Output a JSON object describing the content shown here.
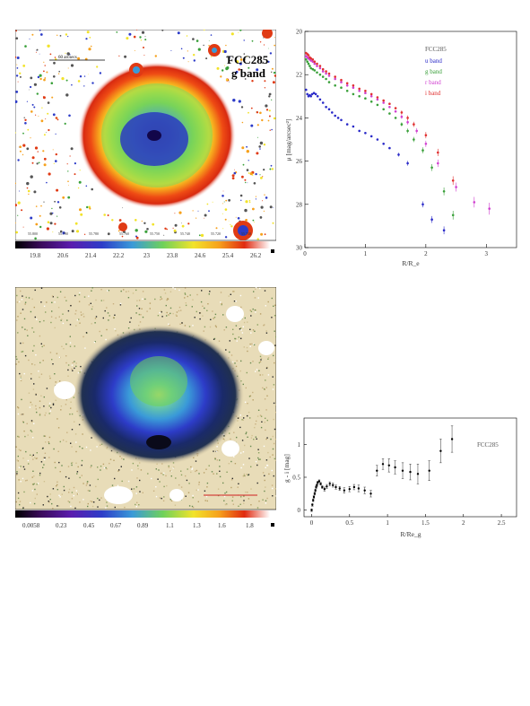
{
  "panel_a": {
    "label_line1": "FCC285",
    "label_line2": "g band",
    "scale_label": "60 arcsecs",
    "colorbar_ticks": [
      "19.8",
      "20.6",
      "21.4",
      "22.2",
      "23",
      "23.8",
      "24.6",
      "25.4",
      "26.2"
    ],
    "coord_ticks": [
      "55.800",
      "55.790",
      "55.780",
      "55.760",
      "55.750",
      "55.740",
      "55.720",
      "55.710"
    ]
  },
  "panel_c": {
    "colorbar_ticks": [
      "0.0058",
      "0.23",
      "0.45",
      "0.67",
      "0.89",
      "1.1",
      "1.3",
      "1.6",
      "1.8"
    ]
  },
  "chart_data": [
    {
      "type": "scatter",
      "title": "",
      "legend_title": "FCC285",
      "legend_position": "top-right",
      "xlabel": "R/R_e",
      "ylabel": "μ [mag/arcsec²]",
      "xlim": [
        0,
        3.5
      ],
      "ylim": [
        30,
        20
      ],
      "y_inverted": true,
      "xticks": [
        "0",
        "1",
        "2",
        "3"
      ],
      "yticks": [
        "20",
        "22",
        "24",
        "26",
        "28",
        "30"
      ],
      "series": [
        {
          "name": "u band",
          "color": "#2a2ac8",
          "x": [
            0.02,
            0.04,
            0.06,
            0.08,
            0.1,
            0.12,
            0.15,
            0.18,
            0.21,
            0.25,
            0.3,
            0.35,
            0.4,
            0.45,
            0.5,
            0.55,
            0.6,
            0.7,
            0.8,
            0.9,
            1.0,
            1.1,
            1.2,
            1.3,
            1.4,
            1.55,
            1.7,
            1.95,
            2.1,
            2.3
          ],
          "y": [
            22.7,
            22.9,
            23.0,
            22.95,
            23.0,
            22.9,
            22.85,
            22.9,
            23.0,
            23.15,
            23.3,
            23.5,
            23.6,
            23.75,
            23.9,
            24.0,
            24.1,
            24.3,
            24.4,
            24.6,
            24.7,
            24.85,
            25.0,
            25.2,
            25.4,
            25.7,
            26.1,
            28.0,
            28.7,
            29.2
          ]
        },
        {
          "name": "g band",
          "color": "#3aa03a",
          "x": [
            0.02,
            0.04,
            0.06,
            0.08,
            0.1,
            0.13,
            0.16,
            0.2,
            0.25,
            0.3,
            0.35,
            0.4,
            0.5,
            0.6,
            0.7,
            0.8,
            0.9,
            1.0,
            1.1,
            1.2,
            1.3,
            1.4,
            1.5,
            1.6,
            1.7,
            1.8,
            1.95,
            2.1,
            2.3,
            2.45
          ],
          "y": [
            21.3,
            21.4,
            21.5,
            21.6,
            21.7,
            21.75,
            21.8,
            21.9,
            22.0,
            22.1,
            22.2,
            22.35,
            22.5,
            22.6,
            22.75,
            22.9,
            23.0,
            23.1,
            23.25,
            23.4,
            23.6,
            23.8,
            24.0,
            24.3,
            24.6,
            25.0,
            25.5,
            26.3,
            27.4,
            28.5
          ]
        },
        {
          "name": "r band",
          "color": "#d040d0",
          "x": [
            0.02,
            0.04,
            0.06,
            0.08,
            0.1,
            0.13,
            0.16,
            0.2,
            0.25,
            0.3,
            0.35,
            0.4,
            0.5,
            0.6,
            0.7,
            0.8,
            0.9,
            1.0,
            1.1,
            1.2,
            1.3,
            1.4,
            1.5,
            1.6,
            1.7,
            1.85,
            2.0,
            2.2,
            2.5,
            2.8,
            3.05
          ],
          "y": [
            21.15,
            21.2,
            21.25,
            21.3,
            21.35,
            21.4,
            21.5,
            21.6,
            21.7,
            21.85,
            21.95,
            22.05,
            22.2,
            22.35,
            22.5,
            22.6,
            22.75,
            22.85,
            23.0,
            23.15,
            23.3,
            23.5,
            23.7,
            23.95,
            24.2,
            24.6,
            25.2,
            26.1,
            27.2,
            27.9,
            28.2
          ]
        },
        {
          "name": "i band",
          "color": "#e03030",
          "x": [
            0.02,
            0.04,
            0.06,
            0.08,
            0.1,
            0.13,
            0.16,
            0.2,
            0.25,
            0.3,
            0.35,
            0.4,
            0.5,
            0.6,
            0.7,
            0.8,
            0.9,
            1.0,
            1.1,
            1.2,
            1.3,
            1.4,
            1.5,
            1.6,
            1.7,
            1.8,
            2.0,
            2.2,
            2.45
          ],
          "y": [
            21.0,
            21.05,
            21.1,
            21.2,
            21.25,
            21.3,
            21.4,
            21.5,
            21.6,
            21.75,
            21.85,
            21.95,
            22.1,
            22.25,
            22.4,
            22.5,
            22.65,
            22.75,
            22.9,
            23.05,
            23.2,
            23.35,
            23.55,
            23.75,
            24.0,
            24.3,
            24.8,
            25.6,
            26.9
          ]
        }
      ]
    },
    {
      "type": "scatter",
      "title": "",
      "legend_title": "FCC285",
      "legend_position": "top-right",
      "xlabel": "R/Re_g",
      "ylabel": "g - i [mag]",
      "xlim": [
        -0.1,
        2.7
      ],
      "ylim": [
        -0.1,
        1.4
      ],
      "xticks": [
        "0",
        "0.5",
        "1",
        "1.5",
        "2",
        "2.5"
      ],
      "yticks": [
        "0",
        "0.5",
        "1"
      ],
      "series": [
        {
          "name": "",
          "color": "#000000",
          "x": [
            0.0,
            0.01,
            0.02,
            0.03,
            0.04,
            0.05,
            0.06,
            0.07,
            0.08,
            0.1,
            0.12,
            0.14,
            0.17,
            0.2,
            0.24,
            0.28,
            0.32,
            0.37,
            0.43,
            0.5,
            0.56,
            0.62,
            0.7,
            0.78,
            0.86,
            0.94,
            1.02,
            1.1,
            1.2,
            1.3,
            1.4,
            1.55,
            1.7,
            1.85
          ],
          "y": [
            0.0,
            0.08,
            0.15,
            0.2,
            0.25,
            0.3,
            0.35,
            0.38,
            0.42,
            0.44,
            0.4,
            0.35,
            0.32,
            0.36,
            0.4,
            0.38,
            0.35,
            0.33,
            0.3,
            0.32,
            0.35,
            0.33,
            0.3,
            0.25,
            0.6,
            0.7,
            0.68,
            0.65,
            0.6,
            0.58,
            0.55,
            0.6,
            0.9,
            1.08
          ],
          "yerr": [
            0.02,
            0.02,
            0.02,
            0.02,
            0.02,
            0.02,
            0.02,
            0.02,
            0.02,
            0.02,
            0.02,
            0.02,
            0.03,
            0.03,
            0.03,
            0.03,
            0.03,
            0.03,
            0.04,
            0.04,
            0.04,
            0.05,
            0.05,
            0.05,
            0.08,
            0.08,
            0.1,
            0.1,
            0.12,
            0.12,
            0.15,
            0.15,
            0.18,
            0.2
          ]
        }
      ]
    }
  ]
}
